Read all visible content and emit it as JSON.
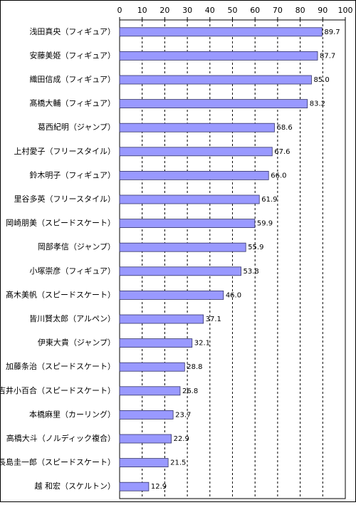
{
  "chart_data": {
    "type": "bar",
    "orientation": "horizontal",
    "categories": [
      "浅田真央（フィギュア）",
      "安藤美姫（フィギュア）",
      "織田信成（フィギュア）",
      "髙橋大輔（フィギュア）",
      "葛西紀明（ジャンプ）",
      "上村愛子（フリースタイル）",
      "鈴木明子（フィギュア）",
      "里谷多英（フリースタイル）",
      "岡崎朋美（スピードスケート）",
      "岡部孝信（ジャンプ）",
      "小塚崇彦（フィギュア）",
      "髙木美帆（スピードスケート）",
      "皆川賢太郎（アルペン）",
      "伊東大貴（ジャンプ）",
      "加藤条治（スピードスケート）",
      "吉井小百合（スピードスケート）",
      "本橋麻里（カーリング）",
      "高橋大斗（ノルディック複合）",
      "長島圭一郎（スピードスケート）",
      "越 和宏（スケルトン）"
    ],
    "values": [
      89.7,
      87.7,
      85.0,
      83.2,
      68.6,
      67.6,
      66.0,
      61.9,
      59.9,
      55.9,
      53.8,
      46.0,
      37.1,
      32.1,
      28.8,
      26.8,
      23.7,
      22.9,
      21.5,
      12.9
    ],
    "value_labels": [
      "89.7",
      "87.7",
      "85.0",
      "83.2",
      "68.6",
      "67.6",
      "66.0",
      "61.9",
      "59.9",
      "55.9",
      "53.8",
      "46.0",
      "37.1",
      "32.1",
      "28.8",
      "26.8",
      "23.7",
      "22.9",
      "21.5",
      "12.9"
    ],
    "color": "#9999ff",
    "xlim": [
      0,
      100
    ],
    "xticks": [
      0,
      10,
      20,
      30,
      40,
      50,
      60,
      70,
      80,
      90,
      100
    ],
    "grid": true
  }
}
